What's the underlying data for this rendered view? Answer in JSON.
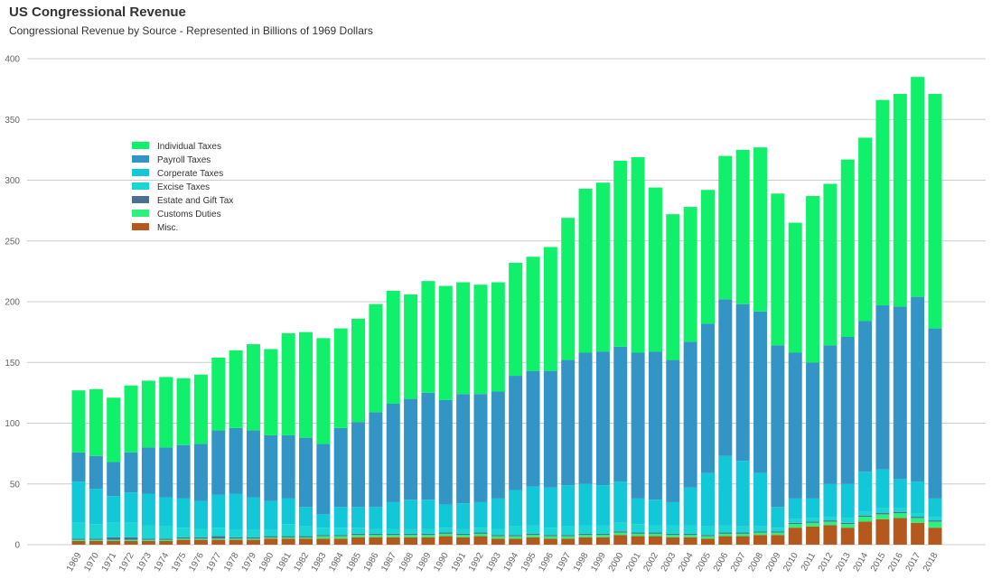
{
  "title": "US Congressional Revenue",
  "subtitle": "Congressional Revenue by Source - Represented in Billions of 1969 Dollars",
  "chart_data": {
    "type": "bar",
    "stacked": true,
    "title": "US Congressional Revenue",
    "subtitle": "Congressional Revenue by Source - Represented in Billions of 1969 Dollars",
    "xlabel": "",
    "ylabel": "",
    "ylim": [
      0,
      400
    ],
    "yticks": [
      0,
      50,
      100,
      150,
      200,
      250,
      300,
      350,
      400
    ],
    "grid": true,
    "legend_position": "top-left",
    "categories": [
      "1969",
      "1970",
      "1971",
      "1972",
      "1973",
      "1974",
      "1975",
      "1976",
      "1977",
      "1978",
      "1979",
      "1980",
      "1981",
      "1982",
      "1983",
      "1984",
      "1985",
      "1986",
      "1987",
      "1988",
      "1989",
      "1990",
      "1991",
      "1992",
      "1993",
      "1994",
      "1995",
      "1996",
      "1997",
      "1998",
      "1999",
      "2000",
      "2001",
      "2002",
      "2003",
      "2004",
      "2005",
      "2006",
      "2007",
      "2008",
      "2009",
      "2010",
      "2011",
      "2012",
      "2013",
      "2014",
      "2015",
      "2016",
      "2017",
      "2018"
    ],
    "series": [
      {
        "name": "Misc.",
        "color": "#b5581e",
        "values": [
          3,
          3,
          3,
          3,
          3,
          3,
          4,
          4,
          4,
          4,
          4,
          5,
          5,
          5,
          5,
          5,
          6,
          6,
          6,
          6,
          6,
          7,
          6,
          7,
          5,
          5,
          6,
          5,
          5,
          6,
          6,
          8,
          7,
          7,
          6,
          6,
          5,
          7,
          7,
          8,
          8,
          14,
          15,
          16,
          14,
          19,
          21,
          22,
          18,
          14
        ]
      },
      {
        "name": "Customs Duties",
        "color": "#2ef07a",
        "values": [
          1,
          1,
          1,
          1,
          1,
          1,
          1,
          1,
          1,
          1,
          1,
          1,
          1,
          1,
          2,
          2,
          2,
          2,
          2,
          2,
          2,
          2,
          2,
          2,
          2,
          2,
          2,
          2,
          2,
          2,
          2,
          2,
          2,
          2,
          2,
          2,
          2,
          2,
          2,
          2,
          2,
          3,
          3,
          3,
          3,
          4,
          4,
          4,
          4,
          5
        ]
      },
      {
        "name": "Estate and Gift Tax",
        "color": "#4a6f8f",
        "values": [
          1,
          1,
          2,
          2,
          1,
          1,
          1,
          1,
          2,
          1,
          1,
          1,
          1,
          1,
          1,
          1,
          1,
          1,
          1,
          1,
          1,
          1,
          1,
          1,
          1,
          1,
          1,
          1,
          1,
          1,
          1,
          1,
          1,
          1,
          1,
          1,
          1,
          1,
          1,
          1,
          1,
          1,
          1,
          1,
          1,
          1,
          1,
          1,
          1,
          1
        ]
      },
      {
        "name": "Excise Taxes",
        "color": "#1cd6d6",
        "values": [
          13,
          12,
          12,
          12,
          11,
          10,
          8,
          7,
          7,
          6,
          6,
          5,
          10,
          8,
          6,
          6,
          5,
          4,
          4,
          4,
          4,
          4,
          4,
          4,
          5,
          7,
          7,
          6,
          7,
          7,
          7,
          7,
          7,
          6,
          7,
          7,
          7,
          6,
          5,
          4,
          3,
          3,
          3,
          3,
          4,
          3,
          4,
          3,
          3,
          3
        ]
      },
      {
        "name": "Corperate Taxes",
        "color": "#12c8d8",
        "values": [
          34,
          29,
          22,
          25,
          26,
          24,
          24,
          23,
          27,
          30,
          27,
          24,
          21,
          16,
          11,
          17,
          17,
          18,
          22,
          24,
          24,
          19,
          21,
          21,
          25,
          30,
          32,
          33,
          34,
          34,
          33,
          34,
          21,
          21,
          19,
          31,
          44,
          57,
          54,
          44,
          17,
          17,
          16,
          27,
          28,
          33,
          32,
          24,
          26,
          15
        ]
      },
      {
        "name": "Payroll Taxes",
        "color": "#3295c5",
        "values": [
          24,
          27,
          28,
          33,
          38,
          41,
          44,
          47,
          53,
          54,
          55,
          54,
          52,
          57,
          58,
          65,
          70,
          78,
          81,
          83,
          88,
          86,
          90,
          89,
          88,
          94,
          95,
          96,
          103,
          108,
          110,
          111,
          120,
          122,
          117,
          120,
          123,
          129,
          129,
          133,
          133,
          120,
          112,
          114,
          121,
          124,
          135,
          142,
          152,
          140
        ]
      },
      {
        "name": "Individual Taxes",
        "color": "#11f06a",
        "values": [
          51,
          55,
          53,
          55,
          55,
          58,
          55,
          57,
          60,
          64,
          71,
          71,
          84,
          87,
          87,
          82,
          85,
          89,
          93,
          86,
          92,
          94,
          92,
          90,
          90,
          93,
          94,
          102,
          117,
          135,
          139,
          153,
          161,
          135,
          120,
          111,
          110,
          118,
          127,
          135,
          125,
          107,
          137,
          133,
          146,
          151,
          169,
          175,
          181,
          193
        ]
      }
    ]
  }
}
